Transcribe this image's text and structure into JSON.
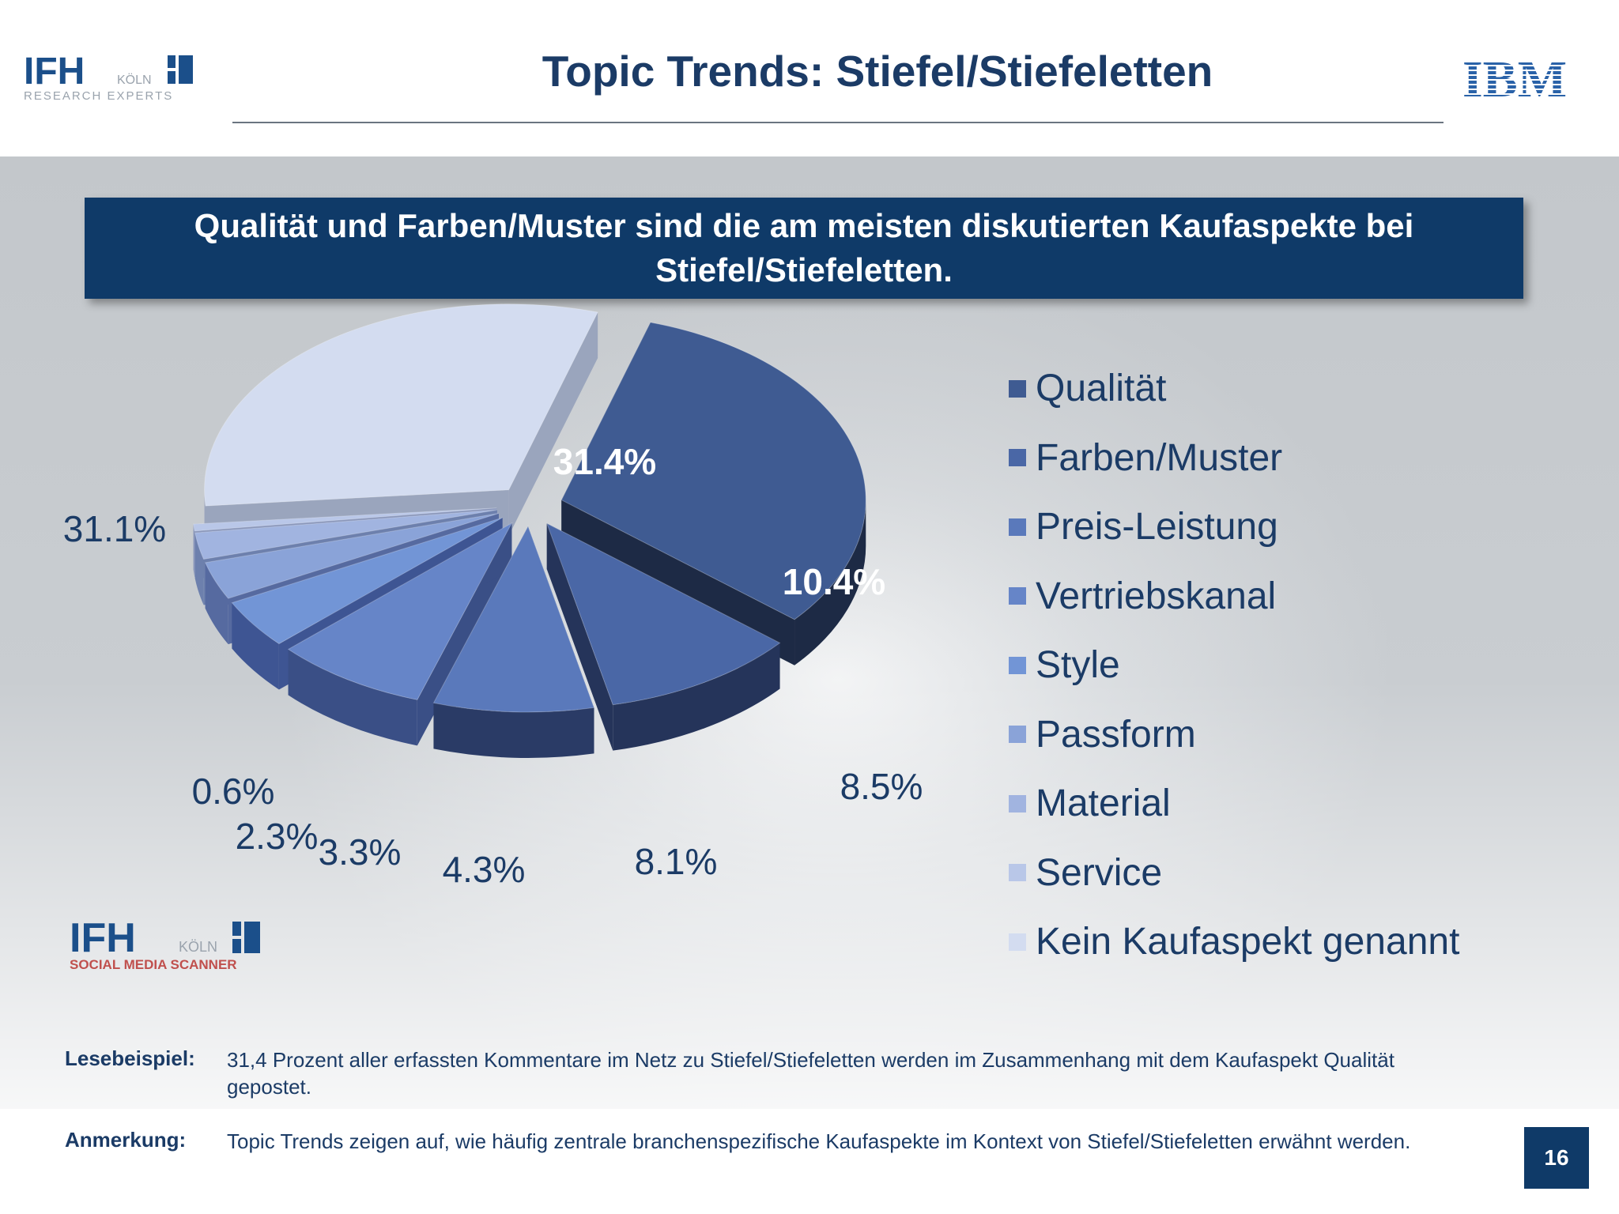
{
  "header": {
    "title": "Topic Trends: Stiefel/Stiefeletten",
    "logo_ifh_text": "IFH",
    "logo_ifh_city": "KÖLN",
    "logo_ifh_sub": "RESEARCH EXPERTS",
    "logo_ibm_text": "IBM"
  },
  "banner": {
    "text": "Qualität und Farben/Muster sind die am meisten diskutierten Kaufaspekte bei Stiefel/Stiefeletten."
  },
  "chart_data": {
    "type": "pie",
    "style": "3d-exploded",
    "legend_position": "right",
    "categories": [
      "Qualität",
      "Farben/Muster",
      "Preis-Leistung",
      "Vertriebskanal",
      "Style",
      "Passform",
      "Material",
      "Service",
      "Kein Kaufaspekt genannt"
    ],
    "values": [
      31.4,
      10.4,
      8.5,
      8.1,
      4.3,
      3.3,
      2.3,
      0.6,
      31.1
    ],
    "labels": [
      "31.4%",
      "10.4%",
      "8.5%",
      "8.1%",
      "4.3%",
      "3.3%",
      "2.3%",
      "0.6%",
      "31.1%"
    ],
    "colors": [
      "#3f5b92",
      "#4a67a6",
      "#5a79bb",
      "#6685c8",
      "#7295d6",
      "#8aa3d8",
      "#a1b4e0",
      "#b9c7e8",
      "#d3dcf0"
    ],
    "side_colors": [
      "#1d2a45",
      "#25345a",
      "#2a3b66",
      "#3a4f86",
      "#3e5593",
      "#566aa0",
      "#6d80ad",
      "#8a97bb",
      "#9aa5bd"
    ]
  },
  "watermark": {
    "logo_ifh_text": "IFH",
    "logo_ifh_city": "KÖLN",
    "logo_ifh_sub": "SOCIAL MEDIA SCANNER"
  },
  "notes": {
    "reading_key": "Lesebeispiel:",
    "reading_text": "31,4 Prozent aller erfassten Kommentare im Netz zu Stiefel/Stiefeletten werden im Zusammenhang mit dem Kaufaspekt Qualität gepostet.",
    "remark_key": "Anmerkung:",
    "remark_text": "Topic Trends zeigen auf, wie häufig zentrale branchenspezifische Kaufaspekte im Kontext von Stiefel/Stiefeletten erwähnt werden."
  },
  "page_number": "16"
}
